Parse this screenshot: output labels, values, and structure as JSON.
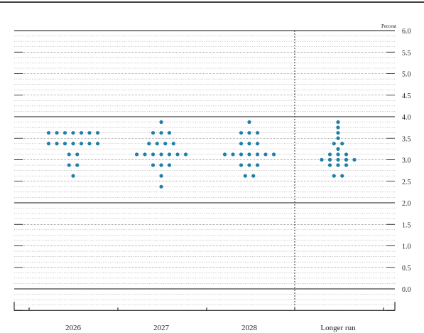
{
  "chart_data": {
    "type": "scatter",
    "unit_label": "Percent",
    "categories": [
      "2026",
      "2027",
      "2028",
      "Longer run"
    ],
    "ylim": [
      -0.5,
      6.0
    ],
    "y_ticks": [
      {
        "value": 6.0,
        "label": "6.0"
      },
      {
        "value": 5.5,
        "label": "5.5"
      },
      {
        "value": 5.0,
        "label": "5.0"
      },
      {
        "value": 4.5,
        "label": "4.5"
      },
      {
        "value": 4.0,
        "label": "4.0"
      },
      {
        "value": 3.5,
        "label": "3.5"
      },
      {
        "value": 3.0,
        "label": "3.0"
      },
      {
        "value": 2.5,
        "label": "2.5"
      },
      {
        "value": 2.0,
        "label": "2.0"
      },
      {
        "value": 1.5,
        "label": "1.5"
      },
      {
        "value": 1.0,
        "label": "1.0"
      },
      {
        "value": 0.5,
        "label": "0.5"
      },
      {
        "value": 0.0,
        "label": "0.0"
      }
    ],
    "grid": true,
    "dot_color": "#1f7fa6",
    "points": [
      {
        "category": "2026",
        "y": 3.625,
        "count": 7
      },
      {
        "category": "2026",
        "y": 3.375,
        "count": 7
      },
      {
        "category": "2026",
        "y": 3.125,
        "count": 2
      },
      {
        "category": "2026",
        "y": 2.875,
        "count": 2
      },
      {
        "category": "2026",
        "y": 2.625,
        "count": 1
      },
      {
        "category": "2027",
        "y": 3.875,
        "count": 1
      },
      {
        "category": "2027",
        "y": 3.625,
        "count": 3
      },
      {
        "category": "2027",
        "y": 3.375,
        "count": 4
      },
      {
        "category": "2027",
        "y": 3.125,
        "count": 7
      },
      {
        "category": "2027",
        "y": 2.875,
        "count": 3
      },
      {
        "category": "2027",
        "y": 2.625,
        "count": 1
      },
      {
        "category": "2027",
        "y": 2.375,
        "count": 1
      },
      {
        "category": "2028",
        "y": 3.875,
        "count": 1
      },
      {
        "category": "2028",
        "y": 3.625,
        "count": 3
      },
      {
        "category": "2028",
        "y": 3.375,
        "count": 3
      },
      {
        "category": "2028",
        "y": 3.125,
        "count": 7
      },
      {
        "category": "2028",
        "y": 2.875,
        "count": 3
      },
      {
        "category": "2028",
        "y": 2.625,
        "count": 2
      },
      {
        "category": "Longer run",
        "y": 3.875,
        "count": 1
      },
      {
        "category": "Longer run",
        "y": 3.75,
        "count": 1
      },
      {
        "category": "Longer run",
        "y": 3.625,
        "count": 1
      },
      {
        "category": "Longer run",
        "y": 3.5,
        "count": 1
      },
      {
        "category": "Longer run",
        "y": 3.375,
        "count": 2
      },
      {
        "category": "Longer run",
        "y": 3.25,
        "count": 1
      },
      {
        "category": "Longer run",
        "y": 3.125,
        "count": 3
      },
      {
        "category": "Longer run",
        "y": 3.0,
        "count": 5
      },
      {
        "category": "Longer run",
        "y": 2.875,
        "count": 3
      },
      {
        "category": "Longer run",
        "y": 2.625,
        "count": 2
      }
    ]
  }
}
